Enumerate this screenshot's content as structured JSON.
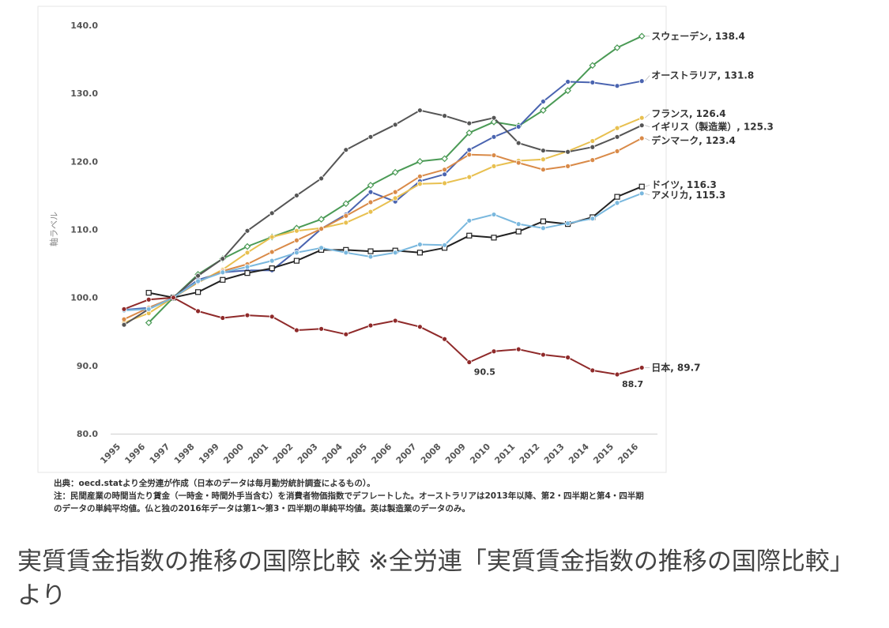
{
  "chart_data": {
    "type": "line",
    "xlabel": "",
    "ylabel": "軸ラベル",
    "ylim": [
      80,
      140
    ],
    "yticks": [
      "80.0",
      "90.0",
      "100.0",
      "110.0",
      "120.0",
      "130.0",
      "140.0"
    ],
    "x": [
      "1995",
      "1996",
      "1997",
      "1998",
      "1999",
      "2000",
      "2001",
      "2002",
      "2003",
      "2004",
      "2005",
      "2006",
      "2007",
      "2008",
      "2009",
      "2010",
      "2011",
      "2012",
      "2013",
      "2014",
      "2015",
      "2016"
    ],
    "grid": false,
    "legend": "end-of-line labels (right)",
    "series": [
      {
        "name": "スウェーデン",
        "end_label": "スウェーデン, 138.4",
        "color": "#4a9a55",
        "marker": "diamond",
        "values": [
          null,
          96.3,
          100.0,
          103.4,
          105.7,
          107.5,
          108.9,
          110.2,
          111.5,
          113.8,
          116.5,
          118.4,
          120.0,
          120.4,
          124.2,
          125.8,
          125.2,
          127.5,
          130.4,
          134.1,
          136.7,
          138.4
        ]
      },
      {
        "name": "オーストラリア",
        "end_label": "オーストラリア, 131.8",
        "color": "#4a64b0",
        "marker": "circle",
        "values": [
          98.2,
          98.5,
          100.0,
          102.6,
          103.7,
          104.0,
          104.0,
          106.9,
          110.1,
          112.2,
          115.5,
          114.1,
          117.1,
          118.1,
          121.7,
          123.6,
          125.1,
          128.8,
          131.7,
          131.6,
          131.1,
          131.8
        ]
      },
      {
        "name": "フランス",
        "end_label": "フランス, 126.4",
        "color": "#e8c050",
        "marker": "circle",
        "values": [
          96.3,
          97.7,
          100.0,
          102.2,
          104.1,
          106.6,
          108.9,
          109.8,
          110.2,
          111.0,
          112.6,
          114.6,
          116.7,
          116.8,
          117.7,
          119.3,
          120.1,
          120.3,
          121.5,
          123.0,
          124.9,
          126.4
        ]
      },
      {
        "name": "イギリス（製造業）",
        "end_label": "イギリス（製造業）, 125.3",
        "color": "#555555",
        "marker": "circle",
        "values": [
          96.0,
          98.3,
          100.0,
          103.2,
          105.7,
          109.8,
          112.4,
          115.0,
          117.5,
          121.7,
          123.6,
          125.4,
          127.5,
          126.7,
          125.6,
          126.4,
          122.7,
          121.6,
          121.4,
          122.1,
          123.6,
          125.3
        ]
      },
      {
        "name": "デンマーク",
        "end_label": "デンマーク, 123.4",
        "color": "#d98a48",
        "marker": "circle",
        "values": [
          96.8,
          98.5,
          100.0,
          102.3,
          103.9,
          104.9,
          106.7,
          108.4,
          110.1,
          112.0,
          114.0,
          115.5,
          117.8,
          118.8,
          121.0,
          120.9,
          119.8,
          118.8,
          119.3,
          120.2,
          121.5,
          123.4
        ]
      },
      {
        "name": "ドイツ",
        "end_label": "ドイツ, 116.3",
        "color": "#222222",
        "marker": "square",
        "values": [
          null,
          100.7,
          100.0,
          100.8,
          102.6,
          103.6,
          104.3,
          105.4,
          107.0,
          107.0,
          106.8,
          106.9,
          106.6,
          107.3,
          109.1,
          108.8,
          109.7,
          111.2,
          110.8,
          111.8,
          114.8,
          116.3
        ]
      },
      {
        "name": "アメリカ",
        "end_label": "アメリカ, 115.3",
        "color": "#7ab8de",
        "marker": "circle",
        "values": [
          98.1,
          98.3,
          100.0,
          102.4,
          103.7,
          104.5,
          105.4,
          106.6,
          107.3,
          106.6,
          106.0,
          106.6,
          107.8,
          107.7,
          111.3,
          112.2,
          110.8,
          110.2,
          110.9,
          111.6,
          113.9,
          115.3
        ]
      },
      {
        "name": "日本",
        "end_label": "日本, 89.7",
        "color": "#8f2a2a",
        "marker": "circle",
        "values": [
          98.3,
          99.7,
          100.0,
          98.0,
          97.0,
          97.4,
          97.2,
          95.2,
          95.4,
          94.6,
          95.9,
          96.6,
          95.7,
          93.9,
          90.5,
          92.1,
          92.4,
          91.6,
          91.2,
          89.3,
          88.7,
          89.7
        ]
      }
    ],
    "annotations": [
      {
        "text": "90.5",
        "x": "2009",
        "y": 90.5
      },
      {
        "text": "88.7",
        "x": "2015",
        "y": 88.7
      }
    ]
  },
  "notes": {
    "source": "出典：oecd.statより全労連が作成（日本のデータは毎月勤労統計調査によるもの）。",
    "note_line1": "注：民間産業の時間当たり賃金（一時金・時間外手当含む）を消費者物価指数でデフレートした。オーストラリアは2013年以降、第2・四半期と第4・四半期",
    "note_line2": "のデータの単純平均値。仏と独の2016年データは第1〜第3・四半期の単純平均値。英は製造業のデータのみ。"
  },
  "caption": "実質賃金指数の推移の国際比較 ※全労連「実質賃金指数の推移の国際比較」より"
}
